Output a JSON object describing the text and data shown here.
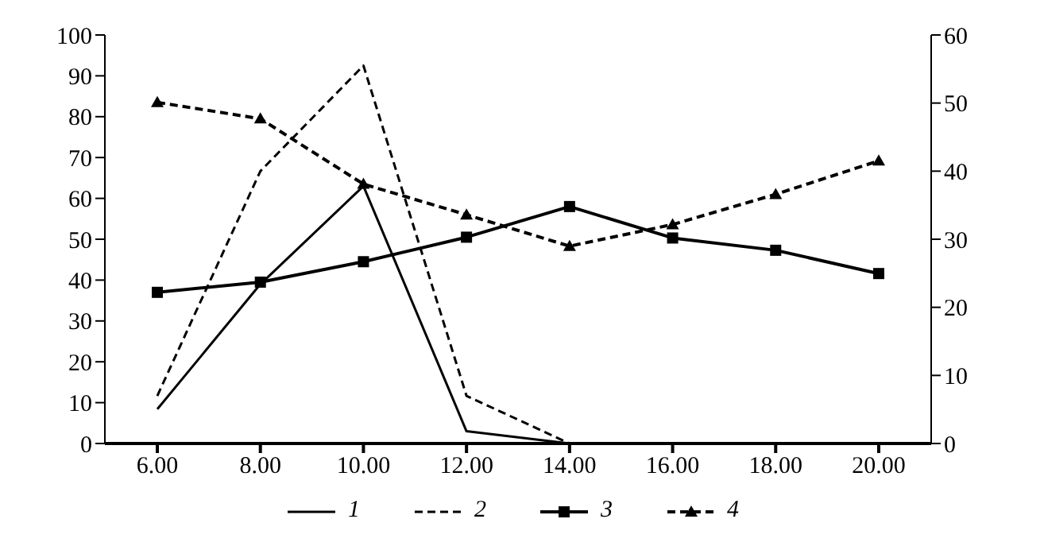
{
  "chart_data": {
    "type": "line",
    "categories": [
      "6.00",
      "8.00",
      "10.00",
      "12.00",
      "14.00",
      "16.00",
      "18.00",
      "20.00"
    ],
    "ylim": [
      0,
      100
    ],
    "yticks": [
      0,
      10,
      20,
      30,
      40,
      50,
      60,
      70,
      80,
      90,
      100
    ],
    "y2lim": [
      0,
      60
    ],
    "y2ticks": [
      0,
      10,
      20,
      30,
      40,
      50,
      60
    ],
    "legend": "bottom",
    "series": [
      {
        "name": "1",
        "color": "#000000",
        "line_style": "solid",
        "marker": "none",
        "values": [
          8.4,
          39,
          63,
          3,
          0,
          null,
          null,
          null
        ]
      },
      {
        "name": "2",
        "color": "#000000",
        "line_style": "dashed",
        "marker": "none",
        "axis": "y2",
        "values": [
          7,
          40,
          55.5,
          7,
          0,
          null,
          null,
          null
        ]
      },
      {
        "name": "3",
        "color": "#000000",
        "line_style": "solid",
        "marker": "square",
        "values": [
          37,
          39.5,
          44.5,
          50.5,
          58,
          50.3,
          47.3,
          41.6
        ]
      },
      {
        "name": "4",
        "color": "#000000",
        "line_style": "dashed",
        "marker": "triangle",
        "values": [
          83.5,
          79.5,
          63.5,
          56,
          48.3,
          53.6,
          61,
          69.2
        ]
      }
    ]
  }
}
